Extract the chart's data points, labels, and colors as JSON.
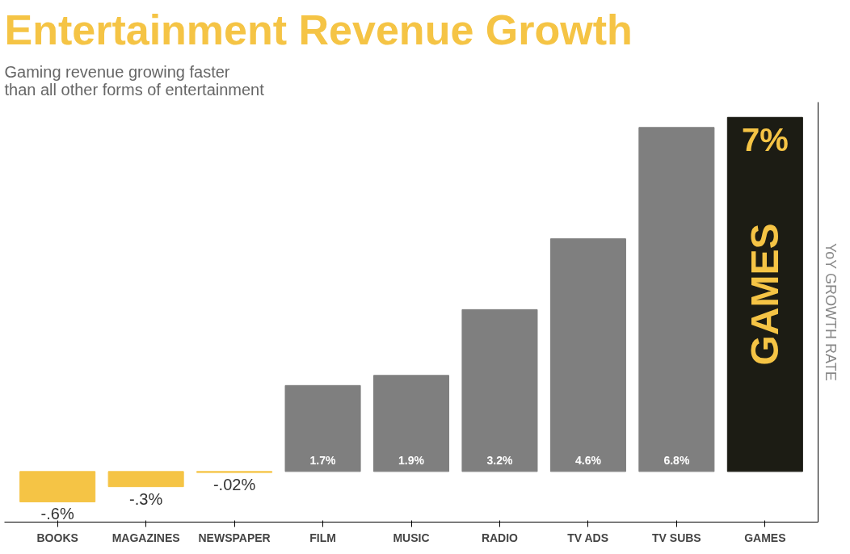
{
  "chart_data": {
    "type": "bar",
    "title": "Entertainment Revenue Growth",
    "subtitle": "Gaming revenue growing faster\nthan all other forms of entertainment",
    "ylabel": "YoY GROWTH RATE",
    "categories": [
      "BOOKS",
      "MAGAZINES",
      "NEWSPAPER",
      "FILM",
      "MUSIC",
      "RADIO",
      "TV ADS",
      "TV SUBS",
      "GAMES"
    ],
    "values": [
      -0.6,
      -0.3,
      -0.02,
      1.7,
      1.9,
      3.2,
      4.6,
      6.8,
      7
    ],
    "colors": [
      "#f5c445",
      "#f5c445",
      "#f5c445",
      "#7f7f7f",
      "#7f7f7f",
      "#7f7f7f",
      "#7f7f7f",
      "#7f7f7f",
      "#1c1c14"
    ],
    "value_labels": [
      "-.6%",
      "-.3%",
      "-.02%",
      "1.7%",
      "1.9%",
      "3.2%",
      "4.6%",
      "6.8%",
      "7%"
    ],
    "annotations": [
      "GAMES"
    ],
    "ylim": [
      -1,
      7.3
    ],
    "tick_labels": "x",
    "grid": false
  }
}
